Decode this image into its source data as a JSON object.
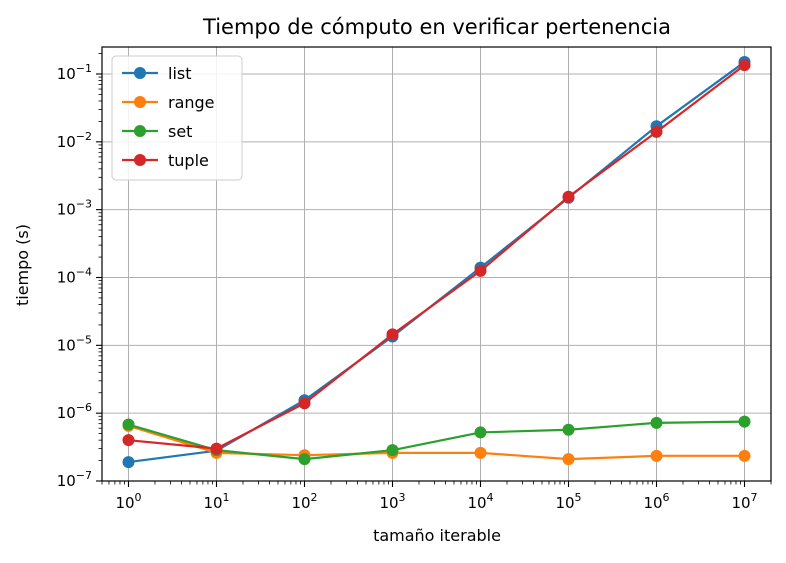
{
  "chart_data": {
    "type": "line",
    "title": "Tiempo de cómputo en verificar pertenencia",
    "xlabel": "tamaño iterable",
    "ylabel": "tiempo (s)",
    "xscale": "log",
    "yscale": "log",
    "xlim": [
      0.5,
      20000000
    ],
    "ylim": [
      1e-07,
      0.25
    ],
    "grid": true,
    "legend": "top-left",
    "x": [
      1,
      10,
      100,
      1000,
      10000,
      100000,
      1000000,
      10000000
    ],
    "x_tick_exponents": [
      "0",
      "1",
      "2",
      "3",
      "4",
      "5",
      "6",
      "7"
    ],
    "y_ticks": [
      1e-07,
      1e-06,
      1e-05,
      0.0001,
      0.001,
      0.01,
      0.1
    ],
    "y_tick_exponents": [
      "−7",
      "−6",
      "−5",
      "−4",
      "−3",
      "−2",
      "−1"
    ],
    "tick_base": "10",
    "series": [
      {
        "name": "list",
        "color": "#1f77b4",
        "values": [
          1.9e-07,
          2.8e-07,
          1.55e-06,
          1.35e-05,
          0.00014,
          0.0015,
          0.017,
          0.15
        ]
      },
      {
        "name": "range",
        "color": "#ff7f0e",
        "values": [
          6.5e-07,
          2.6e-07,
          2.4e-07,
          2.6e-07,
          2.6e-07,
          2.1e-07,
          2.35e-07,
          2.35e-07
        ]
      },
      {
        "name": "set",
        "color": "#2ca02c",
        "values": [
          6.8e-07,
          2.85e-07,
          2.1e-07,
          2.85e-07,
          5.2e-07,
          5.7e-07,
          7.2e-07,
          7.5e-07
        ]
      },
      {
        "name": "tuple",
        "color": "#d62728",
        "values": [
          4e-07,
          3e-07,
          1.4e-06,
          1.45e-05,
          0.000125,
          0.00155,
          0.014,
          0.135
        ]
      }
    ]
  }
}
